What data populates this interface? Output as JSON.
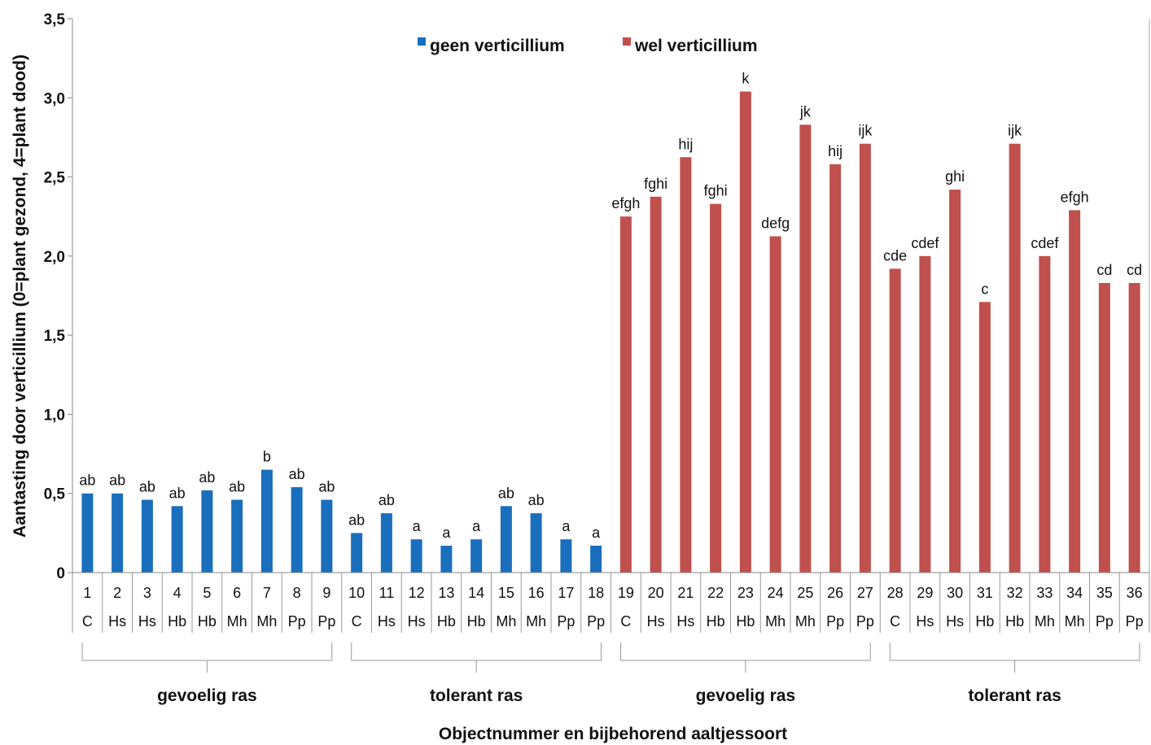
{
  "chart_data": {
    "type": "bar",
    "ylabel": "Aantasting door verticillium (0=plant gezond, 4=plant dood)",
    "xlabel": "Objectnummer en bijbehorend aaltjessoort",
    "ylim": [
      0,
      3.5
    ],
    "yticks": [
      "0",
      "0,5",
      "1,0",
      "1,5",
      "2,0",
      "2,5",
      "3,0",
      "3,5"
    ],
    "legend_position": "top",
    "series": [
      {
        "name": "geen verticillium",
        "color": "#1a6fbd"
      },
      {
        "name": "wel verticillium",
        "color": "#c0504d"
      }
    ],
    "categories": [
      "1",
      "2",
      "3",
      "4",
      "5",
      "6",
      "7",
      "8",
      "9",
      "10",
      "11",
      "12",
      "13",
      "14",
      "15",
      "16",
      "17",
      "18",
      "19",
      "20",
      "21",
      "22",
      "23",
      "24",
      "25",
      "26",
      "27",
      "28",
      "29",
      "30",
      "31",
      "32",
      "33",
      "34",
      "35",
      "36"
    ],
    "nematodes": [
      "C",
      "Hs",
      "Hs",
      "Hb",
      "Hb",
      "Mh",
      "Mh",
      "Pp",
      "Pp",
      "C",
      "Hs",
      "Hs",
      "Hb",
      "Hb",
      "Mh",
      "Mh",
      "Pp",
      "Pp",
      "C",
      "Hs",
      "Hs",
      "Hb",
      "Hb",
      "Mh",
      "Mh",
      "Pp",
      "Pp",
      "C",
      "Hs",
      "Hs",
      "Hb",
      "Hb",
      "Mh",
      "Mh",
      "Pp",
      "Pp"
    ],
    "values": [
      0.5,
      0.5,
      0.46,
      0.42,
      0.52,
      0.46,
      0.65,
      0.54,
      0.46,
      0.25,
      0.375,
      0.21,
      0.17,
      0.21,
      0.42,
      0.375,
      0.21,
      0.17,
      2.25,
      2.375,
      2.625,
      2.33,
      3.04,
      2.125,
      2.83,
      2.58,
      2.71,
      1.92,
      2.0,
      2.42,
      1.71,
      2.71,
      2.0,
      2.29,
      1.83,
      1.83
    ],
    "series_index": [
      0,
      0,
      0,
      0,
      0,
      0,
      0,
      0,
      0,
      0,
      0,
      0,
      0,
      0,
      0,
      0,
      0,
      0,
      1,
      1,
      1,
      1,
      1,
      1,
      1,
      1,
      1,
      1,
      1,
      1,
      1,
      1,
      1,
      1,
      1,
      1
    ],
    "significance": [
      "ab",
      "ab",
      "ab",
      "ab",
      "ab",
      "ab",
      "b",
      "ab",
      "ab",
      "ab",
      "ab",
      "a",
      "a",
      "a",
      "ab",
      "ab",
      "a",
      "a",
      "efgh",
      "fghi",
      "hij",
      "fghi",
      "k",
      "defg",
      "jk",
      "hij",
      "ijk",
      "cde",
      "cdef",
      "ghi",
      "c",
      "ijk",
      "cdef",
      "efgh",
      "cd",
      "cd"
    ],
    "groups": [
      {
        "label": "gevoelig ras",
        "from": 1,
        "to": 9
      },
      {
        "label": "tolerant ras",
        "from": 10,
        "to": 18
      },
      {
        "label": "gevoelig ras",
        "from": 19,
        "to": 27
      },
      {
        "label": "tolerant ras",
        "from": 28,
        "to": 36
      }
    ]
  }
}
